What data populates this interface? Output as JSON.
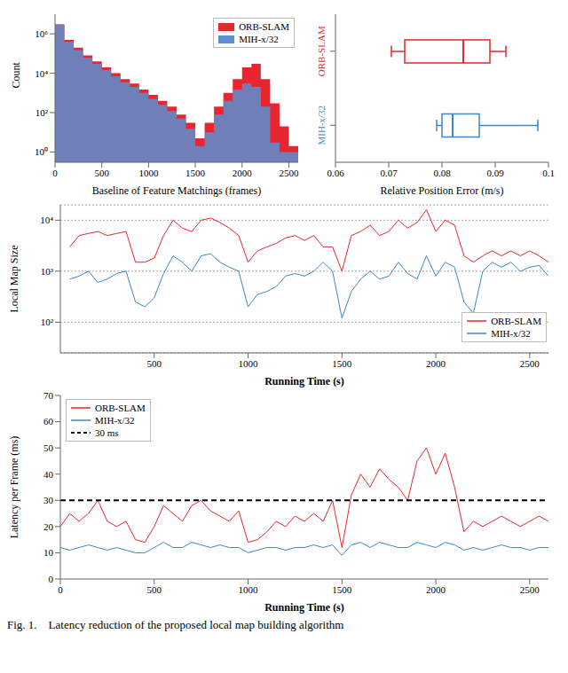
{
  "chart_data": [
    {
      "type": "histogram",
      "xlabel": "Baseline of Feature Matchings (frames)",
      "ylabel": "Count",
      "bins": [
        0,
        100,
        200,
        300,
        400,
        500,
        600,
        700,
        800,
        900,
        1000,
        1100,
        1200,
        1300,
        1400,
        1500,
        1600,
        1700,
        1800,
        1900,
        2000,
        2100,
        2200,
        2300,
        2400,
        2500,
        2600
      ],
      "series": [
        {
          "name": "ORB-SLAM",
          "color": "#e8262d",
          "values": [
            3000000,
            500000,
            200000,
            80000,
            40000,
            20000,
            10000,
            5000,
            3000,
            1500,
            800,
            400,
            200,
            80,
            30,
            5,
            30,
            200,
            1000,
            5000,
            20000,
            30000,
            5000,
            300,
            20,
            2
          ]
        },
        {
          "name": "MIH-x/32",
          "color": "#5b8fd0",
          "values": [
            3000000,
            400000,
            150000,
            60000,
            30000,
            15000,
            7000,
            3500,
            2000,
            1000,
            500,
            250,
            120,
            50,
            15,
            2,
            10,
            80,
            400,
            1500,
            3000,
            2000,
            200,
            3,
            1,
            1
          ]
        }
      ],
      "xlim": [
        0,
        2600
      ],
      "xticks": [
        0,
        500,
        1000,
        1500,
        2000,
        2500
      ],
      "ylim": [
        0.3,
        10000000
      ],
      "yticks": [
        {
          "value": 1,
          "label": "10⁰"
        },
        {
          "value": 100,
          "label": "10²"
        },
        {
          "value": 10000,
          "label": "10⁴"
        },
        {
          "value": 1000000,
          "label": "10⁶"
        }
      ],
      "log": "y",
      "legend": "upper right"
    },
    {
      "type": "box",
      "orientation": "horizontal",
      "xlabel": "Relative Position Error (m/s)",
      "series": [
        {
          "name": "ORB-SLAM",
          "color": "#e8262d",
          "min": 0.0705,
          "q1": 0.073,
          "median": 0.084,
          "q3": 0.089,
          "max": 0.092
        },
        {
          "name": "MIH-x/32",
          "color": "#3b87c8",
          "min": 0.079,
          "q1": 0.08,
          "median": 0.082,
          "q3": 0.087,
          "max": 0.098
        }
      ],
      "xlim": [
        0.06,
        0.1
      ],
      "xticks": [
        0.06,
        0.07,
        0.08,
        0.09,
        0.1
      ]
    },
    {
      "type": "line",
      "xlabel": "Running Time (s)",
      "ylabel": "Local Map Size",
      "x": [
        50,
        100,
        150,
        200,
        250,
        300,
        350,
        400,
        450,
        500,
        550,
        600,
        650,
        700,
        750,
        800,
        850,
        900,
        950,
        1000,
        1050,
        1100,
        1150,
        1200,
        1250,
        1300,
        1350,
        1400,
        1450,
        1500,
        1550,
        1600,
        1650,
        1700,
        1750,
        1800,
        1850,
        1900,
        1950,
        2000,
        2050,
        2100,
        2150,
        2200,
        2250,
        2300,
        2350,
        2400,
        2450,
        2500,
        2550,
        2600
      ],
      "series": [
        {
          "name": "ORB-SLAM",
          "color": "#e8262d",
          "values": [
            3000,
            5000,
            5500,
            6000,
            5000,
            5500,
            6000,
            1500,
            1500,
            1800,
            5000,
            10000,
            7000,
            6000,
            10000,
            11000,
            9000,
            7000,
            5000,
            1500,
            2500,
            3000,
            3500,
            4500,
            5000,
            4000,
            5000,
            3000,
            3000,
            1000,
            5000,
            6000,
            8000,
            5000,
            6000,
            10000,
            7000,
            9000,
            16000,
            6000,
            10000,
            8000,
            2000,
            1500,
            2000,
            2500,
            2000,
            2500,
            2000,
            2500,
            2000,
            1500
          ]
        },
        {
          "name": "MIH-x/32",
          "color": "#3b87c8",
          "values": [
            700,
            800,
            1000,
            600,
            700,
            900,
            1000,
            250,
            200,
            300,
            900,
            2000,
            1500,
            1000,
            2000,
            2200,
            1500,
            1200,
            1000,
            200,
            350,
            400,
            500,
            800,
            900,
            800,
            1000,
            1500,
            1000,
            120,
            400,
            700,
            1000,
            700,
            800,
            1500,
            900,
            700,
            2000,
            800,
            1500,
            1200,
            250,
            150,
            1000,
            1500,
            1200,
            1500,
            1000,
            1200,
            1300,
            800
          ]
        }
      ],
      "xlim": [
        0,
        2600
      ],
      "xticks": [
        500,
        1000,
        1500,
        2000,
        2500
      ],
      "ylim": [
        25,
        20000
      ],
      "yticks": [
        {
          "value": 100,
          "label": "10²"
        },
        {
          "value": 1000,
          "label": "10³"
        },
        {
          "value": 10000,
          "label": "10⁴"
        }
      ],
      "log": "y",
      "grid": true,
      "legend": "lower right"
    },
    {
      "type": "line",
      "xlabel": "Running Time (s)",
      "ylabel": "Latency per Frame (ms)",
      "x": [
        0,
        50,
        100,
        150,
        200,
        250,
        300,
        350,
        400,
        450,
        500,
        550,
        600,
        650,
        700,
        750,
        800,
        850,
        900,
        950,
        1000,
        1050,
        1100,
        1150,
        1200,
        1250,
        1300,
        1350,
        1400,
        1450,
        1500,
        1550,
        1600,
        1650,
        1700,
        1750,
        1800,
        1850,
        1900,
        1950,
        2000,
        2050,
        2100,
        2150,
        2200,
        2250,
        2300,
        2350,
        2400,
        2450,
        2500,
        2550,
        2600
      ],
      "series": [
        {
          "name": "ORB-SLAM",
          "color": "#e8262d",
          "values": [
            20,
            25,
            22,
            25,
            30,
            22,
            20,
            22,
            15,
            14,
            20,
            28,
            25,
            22,
            28,
            30,
            26,
            24,
            22,
            26,
            14,
            15,
            18,
            22,
            20,
            24,
            22,
            25,
            22,
            30,
            12,
            32,
            40,
            35,
            42,
            38,
            35,
            30,
            45,
            50,
            40,
            48,
            35,
            18,
            22,
            20,
            22,
            24,
            22,
            20,
            22,
            24,
            22
          ]
        },
        {
          "name": "MIH-x/32",
          "color": "#3b87c8",
          "values": [
            12,
            11,
            12,
            13,
            12,
            11,
            12,
            11,
            10,
            10,
            12,
            14,
            12,
            12,
            14,
            13,
            12,
            13,
            12,
            12,
            10,
            11,
            12,
            12,
            11,
            12,
            12,
            13,
            12,
            13,
            9,
            13,
            14,
            12,
            14,
            13,
            12,
            12,
            14,
            13,
            12,
            14,
            13,
            11,
            12,
            11,
            12,
            13,
            12,
            12,
            11,
            12,
            12
          ]
        },
        {
          "name": "30 ms",
          "color": "#000000",
          "line_style": "dashed",
          "x": [
            0,
            2600
          ],
          "values": [
            30,
            30
          ]
        }
      ],
      "xlim": [
        0,
        2600
      ],
      "xticks": [
        0,
        500,
        1000,
        1500,
        2000,
        2500
      ],
      "ylim": [
        0,
        70
      ],
      "yticks": [
        0,
        10,
        20,
        30,
        40,
        50,
        60,
        70
      ],
      "legend": "upper left"
    }
  ],
  "caption": "Fig. 1.    Latency reduction of the proposed local map building algorithm"
}
